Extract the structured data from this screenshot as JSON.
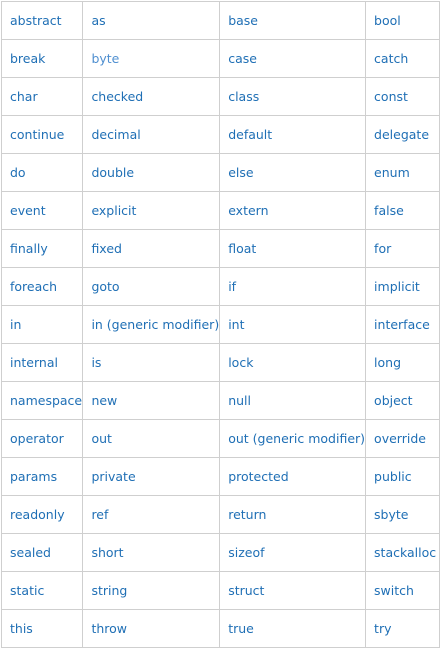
{
  "keywords_table": {
    "rows": [
      [
        "abstract",
        "as",
        "base",
        "bool"
      ],
      [
        "break",
        "byte",
        "case",
        "catch"
      ],
      [
        "char",
        "checked",
        "class",
        "const"
      ],
      [
        "continue",
        "decimal",
        "default",
        "delegate"
      ],
      [
        "do",
        "double",
        "else",
        "enum"
      ],
      [
        "event",
        "explicit",
        "extern",
        "false"
      ],
      [
        "finally",
        "fixed",
        "float",
        "for"
      ],
      [
        "foreach",
        "goto",
        "if",
        "implicit"
      ],
      [
        "in",
        "in (generic modifier)",
        "int",
        "interface"
      ],
      [
        "internal",
        "is",
        "lock",
        "long"
      ],
      [
        "namespace",
        "new",
        "null",
        "object"
      ],
      [
        "operator",
        "out",
        "out (generic modifier)",
        "override"
      ],
      [
        "params",
        "private",
        "protected",
        "public"
      ],
      [
        "readonly",
        "ref",
        "return",
        "sbyte"
      ],
      [
        "sealed",
        "short",
        "sizeof",
        "stackalloc"
      ],
      [
        "static",
        "string",
        "struct",
        "switch"
      ],
      [
        "this",
        "throw",
        "true",
        "try"
      ]
    ],
    "link_color": "#1f6fb5",
    "border_color": "#cfcfcf"
  }
}
